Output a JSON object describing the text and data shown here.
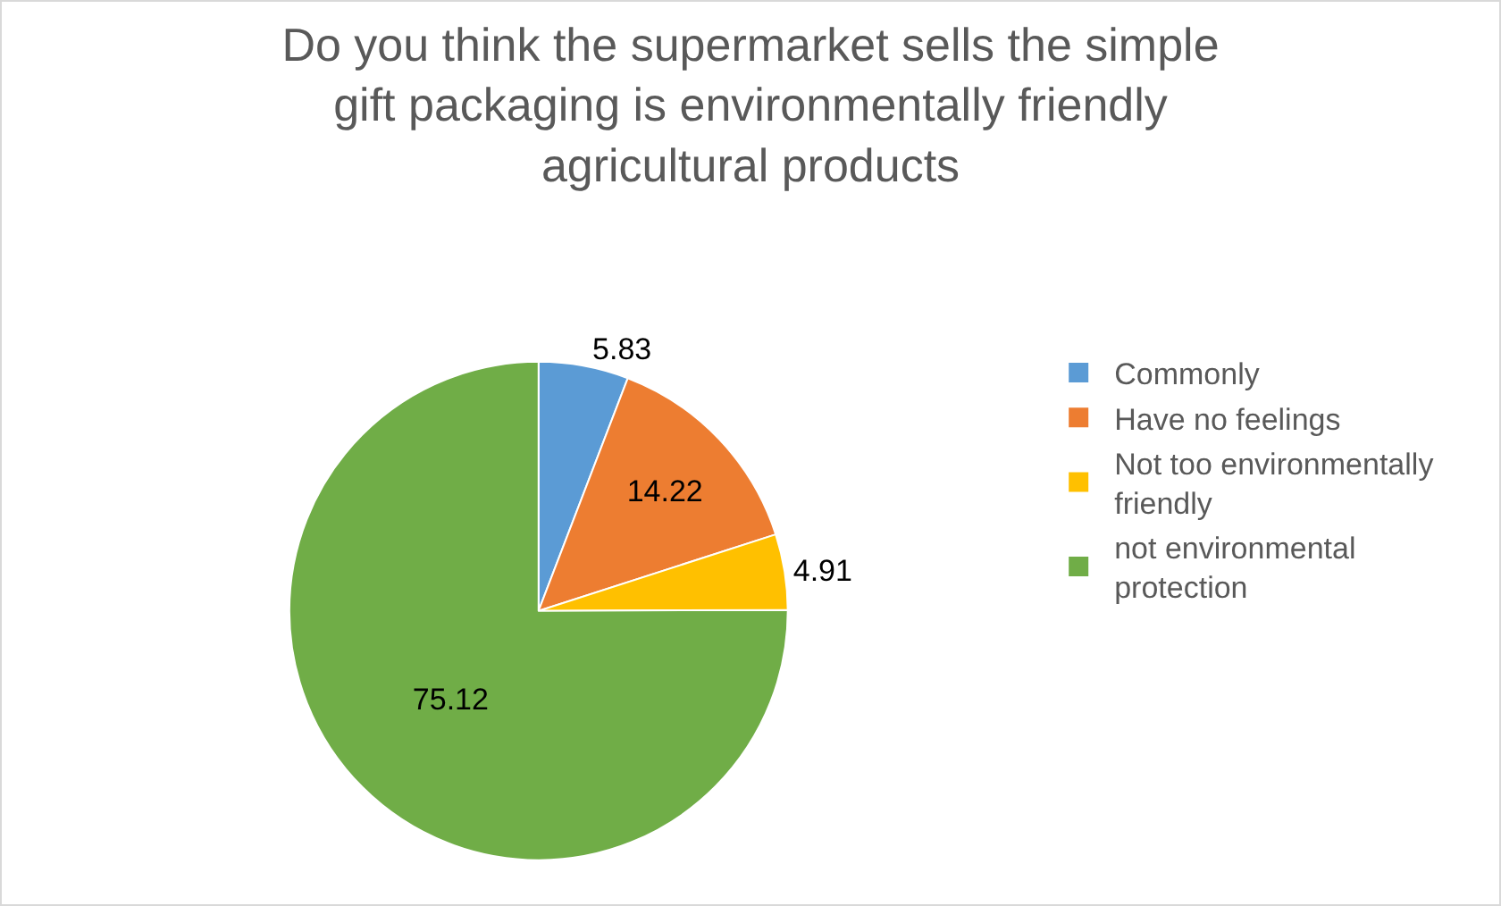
{
  "chart_data": {
    "type": "pie",
    "title": "Do you think the supermarket sells the simple gift packaging is environmentally friendly agricultural products",
    "categories": [
      "Commonly",
      "Have no feelings",
      "Not too environmentally friendly",
      "not environmental protection"
    ],
    "values": [
      5.83,
      14.22,
      4.91,
      75.12
    ],
    "colors": [
      "#5b9bd5",
      "#ed7d31",
      "#ffc000",
      "#70ad47"
    ],
    "data_labels": true,
    "legend": "right"
  }
}
